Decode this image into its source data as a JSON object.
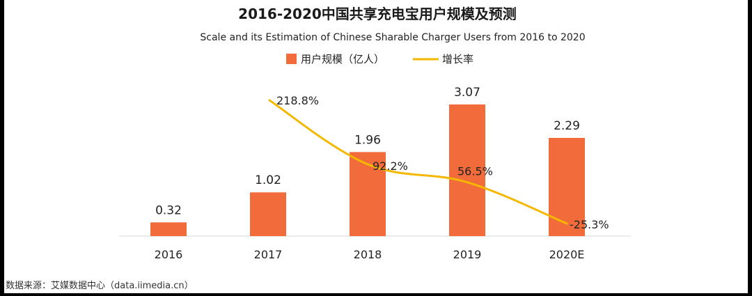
{
  "chart_data": {
    "type": "bar",
    "title": "2016-2020中国共享充电宝用户规模及预测",
    "subtitle": "Scale and its Estimation of Chinese Sharable Charger Users from 2016 to 2020",
    "categories": [
      "2016",
      "2017",
      "2018",
      "2019",
      "2020E"
    ],
    "series": [
      {
        "name": "用户规模（亿人）",
        "kind": "bar",
        "color": "#F26B3A",
        "values": [
          0.32,
          1.02,
          1.96,
          3.07,
          2.29
        ],
        "labels": [
          "0.32",
          "1.02",
          "1.96",
          "3.07",
          "2.29"
        ]
      },
      {
        "name": "增长率",
        "kind": "line",
        "color": "#F5B800",
        "values": [
          null,
          218.8,
          92.2,
          56.5,
          -25.3
        ],
        "labels": [
          "",
          "218.8%",
          "92.2%",
          "56.5%",
          "-25.3%"
        ]
      }
    ],
    "ylim": [
      0,
      3.5
    ],
    "y2lim": [
      -50,
      250
    ],
    "xlabel": "",
    "ylabel": "",
    "grid": false,
    "legend_position": "top-center",
    "source": "数据来源：艾媒数据中心（data.iimedia.cn）"
  }
}
